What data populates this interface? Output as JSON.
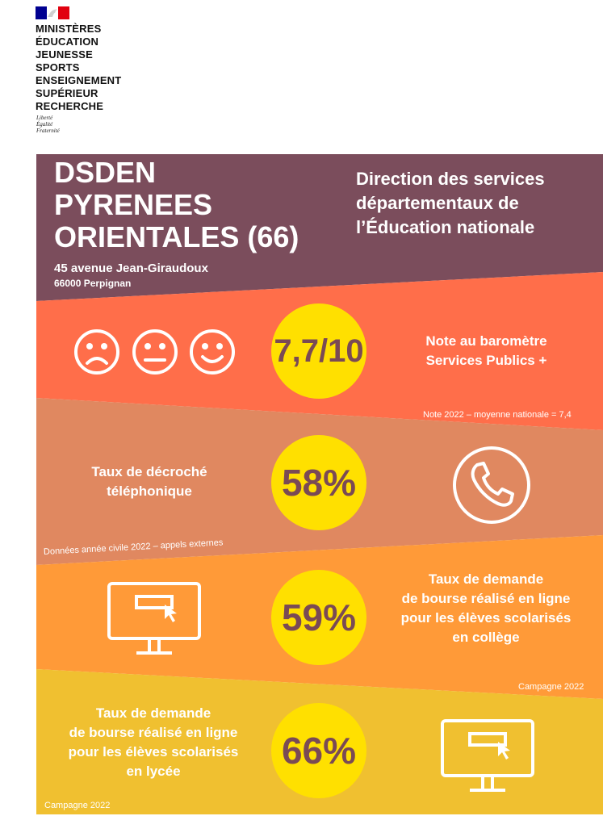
{
  "header": {
    "ministry_lines": [
      "MINISTÈRES",
      "ÉDUCATION",
      "JEUNESSE",
      "SPORTS",
      "ENSEIGNEMENT",
      "SUPÉRIEUR",
      "RECHERCHE"
    ],
    "motto": [
      "Liberté",
      "Égalité",
      "Fraternité"
    ]
  },
  "title_band": {
    "title_line1": "DSDEN",
    "title_line2": "PYRENEES",
    "title_line3": "ORIENTALES (66)",
    "address_line1": "45 avenue Jean-Giraudoux",
    "address_line2": "66000 Perpignan",
    "subtitle_line1": "Direction des services",
    "subtitle_line2": "départementaux de",
    "subtitle_line3": "l’Éducation nationale",
    "color": "#7b4d5c"
  },
  "barometre": {
    "value": "7,7/10",
    "label_line1": "Note au baromètre",
    "label_line2": "Services Publics +",
    "note": "Note 2022 – moyenne nationale = 7,4",
    "color": "#ff6e4a",
    "icons": [
      "sad-face-icon",
      "neutral-face-icon",
      "happy-face-icon"
    ]
  },
  "decroche": {
    "value": "58%",
    "label_line1": "Taux de décroché",
    "label_line2": "téléphonique",
    "note": "Données année civile 2022 – appels externes",
    "color": "#e08860",
    "icon": "phone-icon"
  },
  "bourse_college": {
    "value": "59%",
    "label_lines": [
      "Taux de demande",
      "de bourse réalisé en ligne",
      "pour les élèves scolarisés",
      "en collège"
    ],
    "note": "Campagne 2022",
    "color": "#ff9a38",
    "icon": "computer-icon"
  },
  "bourse_lycee": {
    "value": "66%",
    "label_lines": [
      "Taux de demande",
      "de bourse réalisé en ligne",
      "pour les élèves scolarisés",
      "en lycée"
    ],
    "note": "Campagne 2022",
    "color": "#f0c030",
    "icon": "computer-icon"
  },
  "accent": {
    "circle": "#ffe000",
    "circle_text": "#7a4a55"
  }
}
